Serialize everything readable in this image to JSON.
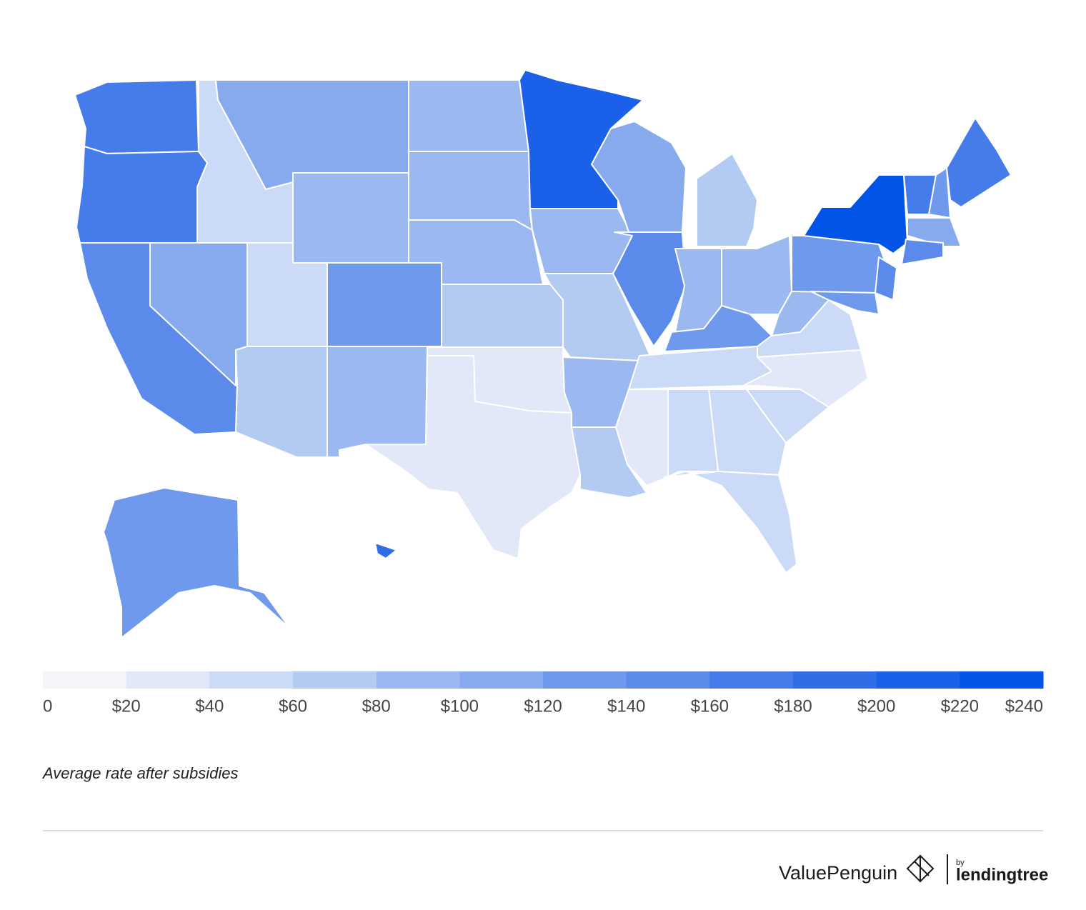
{
  "chart_data": {
    "type": "map",
    "values": [
      170,
      170,
      150,
      110,
      55,
      105,
      90,
      45,
      130,
      65,
      90,
      85,
      90,
      90,
      70,
      35,
      30,
      210,
      80,
      65,
      90,
      65,
      105,
      150,
      75,
      85,
      85,
      130,
      40,
      90,
      55,
      35,
      45,
      40,
      45,
      25,
      45,
      120,
      230,
      150,
      130,
      170,
      130,
      160,
      110,
      150,
      130,
      180
    ],
    "colors": [
      "#f4f5fa",
      "#e2e8f7",
      "#cbdaf6",
      "#b3caf3",
      "#9bb9f0",
      "#87aaee",
      "#6f99ec",
      "#5b8aea",
      "#467ce9",
      "#306ee8",
      "#1a60e8",
      "#0054e8"
    ],
    "ticks": [
      0,
      {
        "value": 20,
        "label": "$20"
      },
      {
        "value": 40,
        "label": "$40"
      },
      {
        "value": 60,
        "label": "$60"
      },
      {
        "value": 80,
        "label": "$80"
      },
      {
        "value": 100,
        "label": "$100"
      },
      {
        "value": 120,
        "label": "$120"
      },
      {
        "value": 140,
        "label": "$140"
      },
      {
        "value": 160,
        "label": "$160"
      },
      {
        "value": 180,
        "label": "$180"
      },
      {
        "value": 200,
        "label": "$200"
      },
      {
        "value": 220,
        "label": "$220"
      },
      {
        "value": 240,
        "label": "$240"
      }
    ],
    "caption": "Average rate after subsidies",
    "brand": "ValuePenguin",
    "brand_by": "by",
    "brand_partner": "lendingtree"
  }
}
